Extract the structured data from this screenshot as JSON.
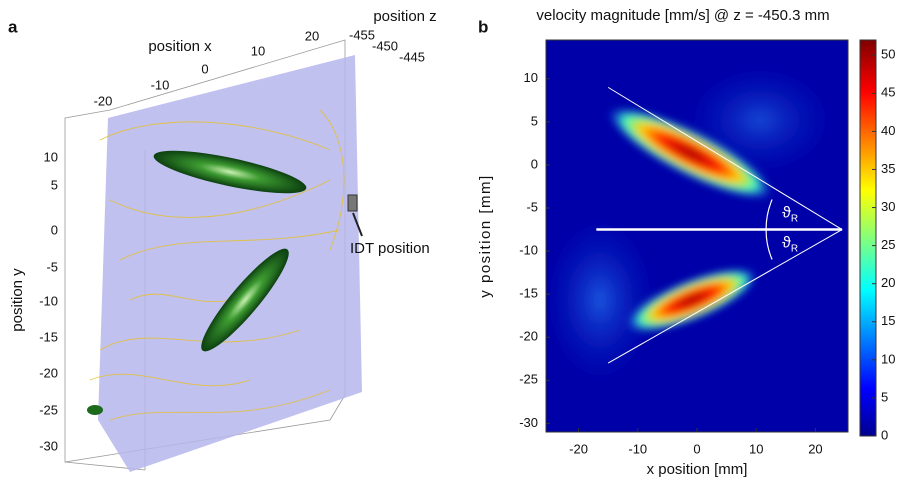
{
  "panel_a": {
    "label": "a",
    "x_axis_title": "position x",
    "x_ticks": [
      "-20",
      "-10",
      "0",
      "10",
      "20"
    ],
    "y_axis_title": "position y",
    "y_ticks": [
      "10",
      "5",
      "0",
      "-5",
      "-10",
      "-15",
      "-20",
      "-25",
      "-30"
    ],
    "z_axis_title": "position z",
    "z_ticks": [
      "-455",
      "-450",
      "-445"
    ],
    "annotation": "IDT position"
  },
  "chart_data": {
    "type": "heatmap",
    "panel_label": "b",
    "title": "velocity magnitude [mm/s] @ z = -450.3 mm",
    "x_label": "x position [mm]",
    "y_label": "y position [mm]",
    "xlim": [
      -25.5,
      25.5
    ],
    "xticks": [
      -20,
      -10,
      0,
      10,
      20
    ],
    "ylim": [
      -31,
      14.5
    ],
    "yticks": [
      10,
      5,
      0,
      -5,
      -10,
      -15,
      -20,
      -25,
      -30
    ],
    "colorbar": {
      "lim": [
        0,
        52
      ],
      "ticks": [
        0,
        5,
        10,
        15,
        20,
        25,
        30,
        35,
        40,
        45,
        50
      ]
    },
    "annotations": [
      {
        "symbol": "ϑ",
        "subscript": "R"
      },
      {
        "symbol": "ϑ",
        "subscript": "R"
      }
    ]
  }
}
